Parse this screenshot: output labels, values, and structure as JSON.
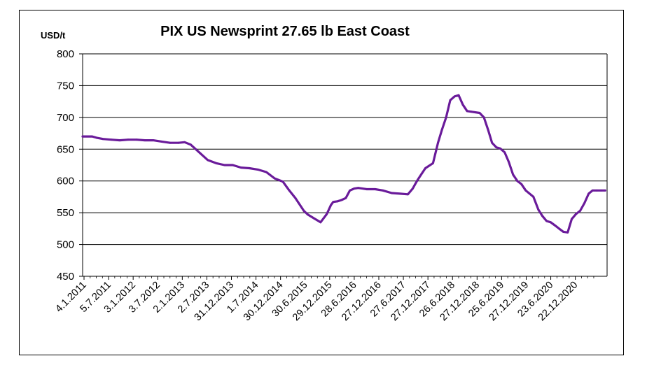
{
  "chart_data": {
    "type": "line",
    "title": "PIX US Newsprint 27.65 lb East Coast",
    "ylabel": "USD/t",
    "xlabel": "",
    "ylim": [
      450,
      800
    ],
    "yticks": [
      450,
      500,
      550,
      600,
      650,
      700,
      750,
      800
    ],
    "x_tick_labels": [
      "4.1.2011",
      "5.7.2011",
      "3.1.2012",
      "3.7.2012",
      "2.1.2013",
      "2.7.2013",
      "31.12.2013",
      "1.7.2014",
      "30.12.2014",
      "30.6.2015",
      "29.12.2015",
      "28.6.2016",
      "27.12.2016",
      "27.6.2017",
      "27.12.2017",
      "26.6.2018",
      "27.12.2018",
      "25.6.2019",
      "27.12.2019",
      "23.6.2020",
      "22.12.2020"
    ],
    "grid": "horizontal",
    "legend": "none",
    "series": [
      {
        "color": "#6a1b9a",
        "x": [
          "2011-01-04",
          "2011-03-15",
          "2011-04-15",
          "2011-06-01",
          "2011-08-01",
          "2011-10-01",
          "2011-12-01",
          "2012-02-01",
          "2012-04-01",
          "2012-06-01",
          "2012-08-01",
          "2012-10-01",
          "2012-12-01",
          "2013-01-15",
          "2013-03-01",
          "2013-05-01",
          "2013-07-01",
          "2013-09-01",
          "2013-11-01",
          "2013-12-31",
          "2014-03-01",
          "2014-05-01",
          "2014-07-01",
          "2014-09-01",
          "2014-11-01",
          "2014-12-30",
          "2015-02-15",
          "2015-04-01",
          "2015-06-01",
          "2015-07-01",
          "2015-08-15",
          "2015-10-01",
          "2015-11-15",
          "2015-12-15",
          "2016-01-01",
          "2016-02-01",
          "2016-03-01",
          "2016-04-01",
          "2016-05-01",
          "2016-06-01",
          "2016-07-01",
          "2016-08-01",
          "2016-09-01",
          "2016-11-01",
          "2016-12-27",
          "2017-03-01",
          "2017-05-01",
          "2017-06-27",
          "2017-08-01",
          "2017-09-01",
          "2017-10-01",
          "2017-11-01",
          "2017-12-27",
          "2018-02-01",
          "2018-03-01",
          "2018-04-01",
          "2018-05-01",
          "2018-06-01",
          "2018-07-01",
          "2018-08-01",
          "2018-09-01",
          "2018-10-01",
          "2018-12-01",
          "2019-01-01",
          "2019-02-01",
          "2019-03-01",
          "2019-04-01",
          "2019-05-01",
          "2019-06-01",
          "2019-07-01",
          "2019-08-01",
          "2019-09-01",
          "2019-10-01",
          "2019-11-01",
          "2019-12-27",
          "2020-02-01",
          "2020-03-01",
          "2020-04-01",
          "2020-05-01",
          "2020-06-01",
          "2020-07-01",
          "2020-08-01",
          "2020-09-01",
          "2020-10-01",
          "2020-11-01",
          "2020-12-01",
          "2021-01-01",
          "2021-02-01",
          "2021-03-01",
          "2021-04-01",
          "2021-05-01",
          "2021-06-01"
        ],
        "values": [
          670,
          670,
          668,
          666,
          665,
          664,
          665,
          665,
          664,
          664,
          662,
          660,
          660,
          661,
          657,
          645,
          633,
          628,
          625,
          625,
          621,
          620,
          618,
          614,
          604,
          599,
          585,
          573,
          553,
          547,
          541,
          535,
          548,
          562,
          567,
          568,
          570,
          573,
          585,
          588,
          589,
          588,
          587,
          587,
          585,
          581,
          580,
          579,
          588,
          600,
          610,
          620,
          628,
          660,
          680,
          700,
          727,
          733,
          735,
          720,
          710,
          709,
          707,
          700,
          680,
          660,
          653,
          651,
          645,
          630,
          610,
          600,
          595,
          585,
          575,
          555,
          545,
          537,
          535,
          530,
          525,
          520,
          519,
          540,
          548,
          553,
          565,
          580,
          585,
          585,
          585,
          585
        ]
      }
    ]
  }
}
